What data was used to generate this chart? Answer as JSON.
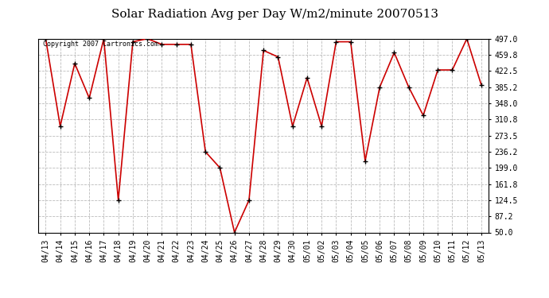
{
  "title": "Solar Radiation Avg per Day W/m2/minute 20070513",
  "copyright_text": "Copyright 2007 Cartronics.com",
  "dates": [
    "04/13",
    "04/14",
    "04/15",
    "04/16",
    "04/17",
    "04/18",
    "04/19",
    "04/20",
    "04/21",
    "04/22",
    "04/23",
    "04/24",
    "04/25",
    "04/26",
    "04/27",
    "04/28",
    "04/29",
    "04/30",
    "05/01",
    "05/02",
    "05/03",
    "05/04",
    "05/05",
    "05/06",
    "05/07",
    "05/08",
    "05/09",
    "05/10",
    "05/11",
    "05/12",
    "05/13"
  ],
  "values": [
    497.0,
    295.0,
    440.0,
    360.0,
    497.0,
    124.5,
    490.0,
    497.0,
    484.0,
    484.0,
    484.0,
    236.2,
    199.0,
    50.0,
    124.5,
    470.0,
    455.0,
    295.0,
    407.0,
    295.0,
    490.0,
    490.0,
    215.0,
    385.2,
    465.0,
    385.2,
    320.0,
    425.0,
    425.0,
    497.0,
    390.0
  ],
  "line_color": "#cc0000",
  "marker_color": "#000000",
  "bg_color": "#ffffff",
  "plot_bg_color": "#ffffff",
  "grid_color": "#bbbbbb",
  "title_fontsize": 11,
  "tick_fontsize": 7,
  "ylabel_values": [
    50.0,
    87.2,
    124.5,
    161.8,
    199.0,
    236.2,
    273.5,
    310.8,
    348.0,
    385.2,
    422.5,
    459.8,
    497.0
  ],
  "ylim": [
    50.0,
    497.0
  ],
  "copyright_fontsize": 6
}
